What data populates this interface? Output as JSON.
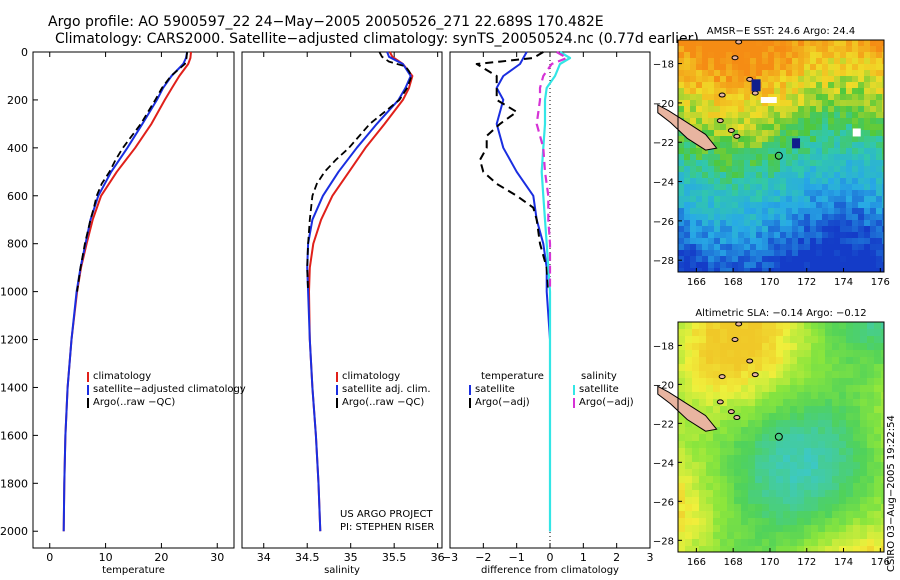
{
  "header": {
    "line1": "Argo profile: AO 5900597_22 24−May−2005 20050526_271 22.689S 170.482E",
    "line2": "Climatology: CARS2000. Satellite−adjusted climatology: synTS_20050524.nc (0.77d earlier)"
  },
  "colors": {
    "clim": "#e0201a",
    "sat": "#1a2ee0",
    "argo": "#000000",
    "sal_sat": "#33e6e6",
    "sal_argo": "#d633d6"
  },
  "chart_data": [
    {
      "type": "line",
      "title": "",
      "xlabel": "temperature",
      "ylabel": "",
      "xlim": [
        -3,
        33
      ],
      "ylim": [
        2070,
        0
      ],
      "xticks": [
        0,
        10,
        20,
        30
      ],
      "yticks": [
        0,
        200,
        400,
        600,
        800,
        1000,
        1200,
        1400,
        1600,
        1800,
        2000
      ],
      "legend": [
        "climatology",
        "satellite−adjusted climatology",
        "Argo(..raw −QC)"
      ],
      "series": [
        {
          "name": "climatology",
          "depth": [
            0,
            25,
            50,
            100,
            150,
            200,
            300,
            400,
            500,
            600,
            700,
            800,
            900,
            1000,
            1200,
            1400,
            1600,
            1800,
            2000
          ],
          "values": [
            25.3,
            25.2,
            24.8,
            23.2,
            21.9,
            20.6,
            18.2,
            15.3,
            12.0,
            9.2,
            7.7,
            6.6,
            5.6,
            4.9,
            3.9,
            3.2,
            2.8,
            2.6,
            2.5
          ]
        },
        {
          "name": "satellite-adjusted climatology",
          "depth": [
            0,
            25,
            50,
            100,
            150,
            200,
            300,
            400,
            500,
            600,
            700,
            800,
            900,
            1000,
            1200,
            1400,
            1600,
            1800,
            2000
          ],
          "values": [
            24.6,
            24.4,
            23.9,
            21.8,
            20.3,
            19.2,
            16.6,
            13.9,
            11.0,
            8.7,
            7.3,
            6.4,
            5.5,
            4.8,
            3.9,
            3.2,
            2.8,
            2.6,
            2.5
          ]
        },
        {
          "name": "Argo(..raw -QC)",
          "depth": [
            0,
            25,
            50,
            100,
            150,
            200,
            300,
            400,
            450,
            500,
            550,
            600,
            650,
            700,
            800,
            900,
            1000
          ],
          "values": [
            24.6,
            24.5,
            24.2,
            21.7,
            20.1,
            18.9,
            16.3,
            13.1,
            11.8,
            10.7,
            9.3,
            8.4,
            7.9,
            7.3,
            6.3,
            5.5,
            4.9
          ]
        }
      ]
    },
    {
      "type": "line",
      "title": "",
      "xlabel": "salinity",
      "ylabel": "",
      "xlim": [
        33.75,
        36.05
      ],
      "ylim": [
        2070,
        0
      ],
      "xticks": [
        34,
        34.5,
        35,
        35.5,
        36
      ],
      "yticks": [],
      "legend": [
        "climatology",
        "satellite adj. clim.",
        "Argo(..raw −QC)"
      ],
      "series": [
        {
          "name": "climatology",
          "depth": [
            0,
            20,
            50,
            100,
            150,
            200,
            300,
            400,
            500,
            600,
            700,
            800,
            900,
            1000,
            1200,
            1400,
            1600,
            1800,
            2000
          ],
          "values": [
            35.45,
            35.48,
            35.6,
            35.71,
            35.67,
            35.6,
            35.39,
            35.17,
            34.98,
            34.79,
            34.66,
            34.57,
            34.53,
            34.52,
            34.53,
            34.56,
            34.6,
            34.63,
            34.65
          ]
        },
        {
          "name": "satellite adj. clim.",
          "depth": [
            0,
            20,
            50,
            100,
            150,
            200,
            300,
            400,
            500,
            600,
            700,
            800,
            900,
            1000,
            1200,
            1400,
            1600,
            1800,
            2000
          ],
          "values": [
            35.42,
            35.44,
            35.6,
            35.69,
            35.63,
            35.55,
            35.3,
            35.07,
            34.86,
            34.68,
            34.56,
            34.51,
            34.5,
            34.51,
            34.53,
            34.56,
            34.6,
            34.63,
            34.65
          ]
        },
        {
          "name": "Argo(..raw -QC)",
          "depth": [
            0,
            20,
            40,
            60,
            80,
            100,
            150,
            200,
            300,
            400,
            450,
            500,
            550,
            600,
            700,
            800,
            900,
            1000
          ],
          "values": [
            35.33,
            35.36,
            35.44,
            35.63,
            35.67,
            35.7,
            35.65,
            35.56,
            35.22,
            34.98,
            34.83,
            34.7,
            34.61,
            34.56,
            34.53,
            34.51,
            34.5,
            34.51
          ]
        }
      ]
    },
    {
      "type": "line",
      "title": "",
      "xlabel": "difference from climatology",
      "ylabel": "",
      "xlim": [
        -3,
        3
      ],
      "ylim": [
        2070,
        0
      ],
      "xticks": [
        -3,
        -2,
        -1,
        0,
        1,
        2,
        3
      ],
      "yticks": [],
      "legend_temperature_header": "temperature",
      "legend_salinity_header": "salinity",
      "legend": [
        "satellite",
        "Argo(−adj)",
        "satellite",
        "Argo(−adj)"
      ],
      "series": [
        {
          "name": "temperature satellite",
          "depth": [
            0,
            25,
            50,
            100,
            150,
            200,
            300,
            400,
            500,
            600,
            700,
            800,
            900,
            1000,
            1200,
            1400,
            1600,
            1800,
            2000
          ],
          "values": [
            -0.7,
            -0.8,
            -0.9,
            -1.4,
            -1.6,
            -1.4,
            -1.6,
            -1.4,
            -1.0,
            -0.5,
            -0.4,
            -0.2,
            -0.1,
            -0.1,
            0,
            0,
            0,
            0,
            0
          ]
        },
        {
          "name": "temperature Argo(-adj)",
          "depth": [
            0,
            25,
            40,
            50,
            100,
            200,
            250,
            300,
            350,
            400,
            450,
            500,
            550,
            600,
            650,
            700,
            800,
            900,
            1000
          ],
          "values": [
            -0.2,
            -0.5,
            -1.5,
            -2.2,
            -1.6,
            -1.6,
            -1.0,
            -1.5,
            -1.9,
            -1.9,
            -2.1,
            -2.0,
            -1.6,
            -1.0,
            -0.5,
            -0.4,
            -0.3,
            -0.1,
            -0.05
          ]
        },
        {
          "name": "salinity satellite",
          "depth": [
            0,
            25,
            50,
            100,
            150,
            200,
            300,
            400,
            500,
            600,
            700,
            800,
            900,
            1000,
            1200,
            1400,
            1600,
            1800,
            2000
          ],
          "values": [
            0.3,
            0.6,
            0.3,
            0.15,
            -0.1,
            -0.15,
            -0.15,
            -0.2,
            -0.25,
            -0.2,
            -0.15,
            -0.1,
            -0.05,
            0,
            0,
            0,
            0,
            0,
            0
          ]
        },
        {
          "name": "salinity Argo(-adj)",
          "depth": [
            0,
            25,
            50,
            100,
            150,
            200,
            300,
            400,
            500,
            600,
            700,
            800,
            900,
            1000
          ],
          "values": [
            0.2,
            0.5,
            0.05,
            -0.2,
            -0.3,
            -0.3,
            -0.4,
            -0.2,
            -0.15,
            -0.05,
            -0.05,
            0,
            0,
            0
          ]
        }
      ]
    }
  ],
  "credits": {
    "line1": "US ARGO PROJECT",
    "line2": "PI: STEPHEN RISER"
  },
  "maps": [
    {
      "title": "AMSR−E SST: 24.6 Argo: 24.4",
      "xticks": [
        166,
        168,
        170,
        172,
        174,
        176
      ],
      "yticks": [
        -18,
        -20,
        -22,
        -24,
        -26,
        -28
      ],
      "xlim": [
        165,
        176.2
      ],
      "ylim": [
        -28.6,
        -16.8
      ]
    },
    {
      "title": "Altimetric SLA: −0.14 Argo: −0.12",
      "xticks": [
        166,
        168,
        170,
        172,
        174,
        176
      ],
      "yticks": [
        -18,
        -20,
        -22,
        -24,
        -26,
        -28
      ],
      "xlim": [
        165,
        176.2
      ],
      "ylim": [
        -28.6,
        -16.8
      ]
    }
  ],
  "stamp": "CSIRO 03−Aug−2005 19:22:54"
}
